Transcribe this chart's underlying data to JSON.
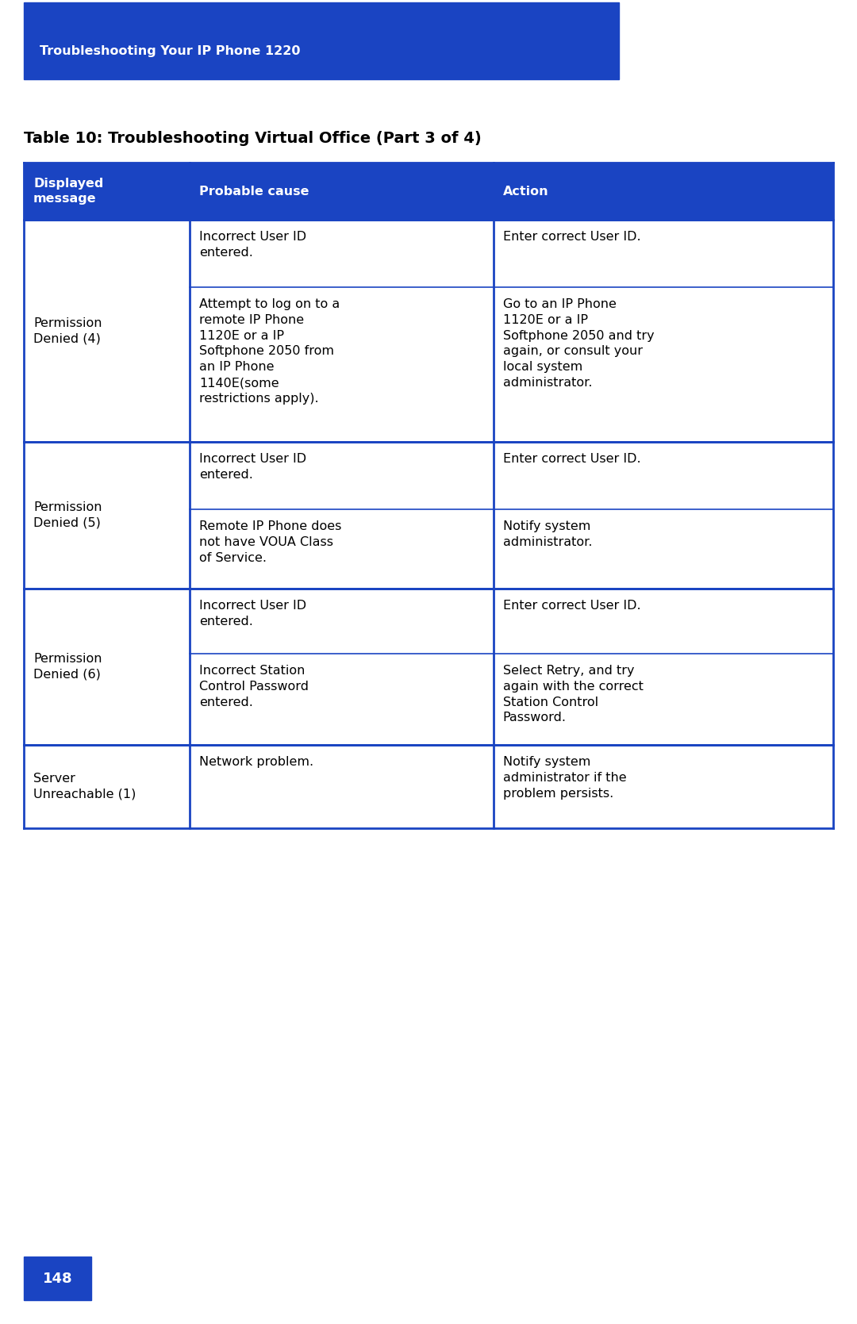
{
  "page_bg": "#ffffff",
  "header_bg": "#1a44c2",
  "header_text": "Troubleshooting Your IP Phone 1220",
  "header_text_color": "#ffffff",
  "table_title": "Table 10: Troubleshooting Virtual Office (Part 3 of 4)",
  "table_title_color": "#000000",
  "col_header_bg": "#1a44c2",
  "col_header_text_color": "#ffffff",
  "col_headers": [
    "Displayed\nmessage",
    "Probable cause",
    "Action"
  ],
  "table_border_color": "#1a44c2",
  "cell_bg": "#ffffff",
  "cell_text_color": "#000000",
  "page_number": "148",
  "page_num_bg": "#1a44c2",
  "page_num_color": "#ffffff",
  "rows": [
    {
      "col0": "Permission\nDenied (4)",
      "col1": "Incorrect User ID\nentered.",
      "col2": "Enter correct User ID."
    },
    {
      "col0": "",
      "col1": "Attempt to log on to a\nremote IP Phone\n1120E or a IP\nSoftphone 2050 from\nan IP Phone\n1140E(some\nrestrictions apply).",
      "col2": "Go to an IP Phone\n1120E or a IP\nSoftphone 2050 and try\nagain, or consult your\nlocal system\nadministrator."
    },
    {
      "col0": "Permission\nDenied (5)",
      "col1": "Incorrect User ID\nentered.",
      "col2": "Enter correct User ID."
    },
    {
      "col0": "",
      "col1": "Remote IP Phone does\nnot have VOUA Class\nof Service.",
      "col2": "Notify system\nadministrator."
    },
    {
      "col0": "Permission\nDenied (6)",
      "col1": "Incorrect User ID\nentered.",
      "col2": "Enter correct User ID."
    },
    {
      "col0": "",
      "col1": "Incorrect Station\nControl Password\nentered.",
      "col2": "Select Retry, and try\nagain with the correct\nStation Control\nPassword."
    },
    {
      "col0": "Server\nUnreachable (1)",
      "col1": "Network problem.",
      "col2": "Notify system\nadministrator if the\nproblem persists."
    }
  ],
  "figsize": [
    10.8,
    16.69
  ],
  "dpi": 100
}
